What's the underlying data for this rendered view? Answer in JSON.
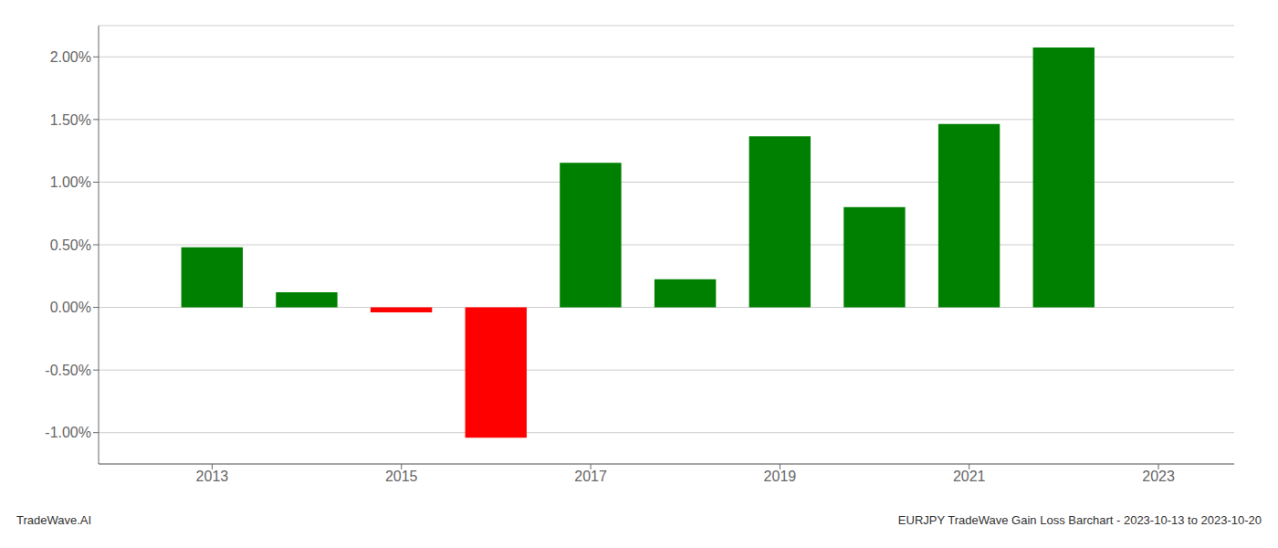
{
  "chart_data": {
    "type": "bar",
    "x": [
      2013,
      2014,
      2015,
      2016,
      2017,
      2018,
      2019,
      2020,
      2021,
      2022
    ],
    "values": [
      0.0048,
      0.0012,
      -0.0004,
      -0.0104,
      0.01155,
      0.00225,
      0.01365,
      0.008,
      0.01465,
      0.02075
    ],
    "colors": [
      "#008000",
      "#008000",
      "#ff0000",
      "#ff0000",
      "#008000",
      "#008000",
      "#008000",
      "#008000",
      "#008000",
      "#008000"
    ],
    "xlim": [
      2011.8,
      2023.8
    ],
    "xticks": [
      2013,
      2015,
      2017,
      2019,
      2021,
      2023
    ],
    "ylim": [
      -0.0125,
      0.0225
    ],
    "yticks": [
      {
        "value": -0.01,
        "label": "-1.00%"
      },
      {
        "value": -0.005,
        "label": "-0.50%"
      },
      {
        "value": 0.0,
        "label": "0.00%"
      },
      {
        "value": 0.005,
        "label": "0.50%"
      },
      {
        "value": 0.01,
        "label": "1.00%"
      },
      {
        "value": 0.015,
        "label": "1.50%"
      },
      {
        "value": 0.02,
        "label": "2.00%"
      }
    ],
    "grid": true,
    "annotations": [
      "TradeWave.AI",
      "EURJPY TradeWave Gain Loss Barchart - 2023-10-13 to 2023-10-20"
    ]
  }
}
